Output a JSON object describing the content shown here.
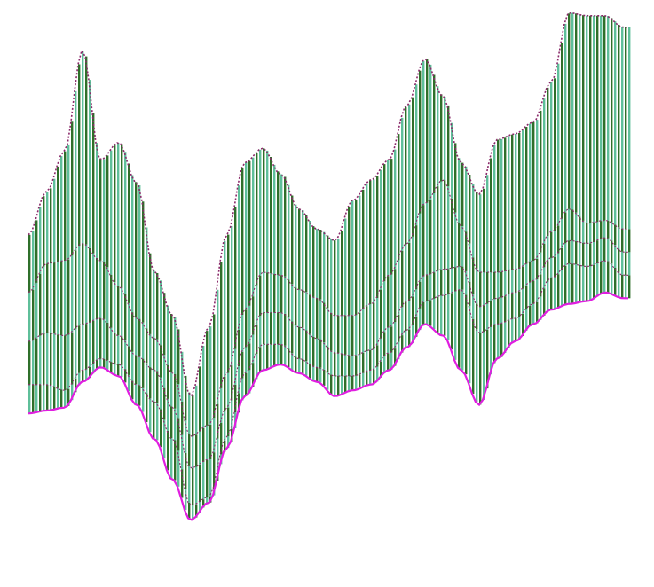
{
  "chart_data": {
    "type": "area",
    "style": "stacked streamgraph drawn with thin vertical bars",
    "title": "",
    "xlabel": "",
    "ylabel": "",
    "axes_visible": false,
    "grid": false,
    "legend": "none",
    "x_range": [
      0,
      100
    ],
    "y_range": [
      -100,
      100
    ],
    "colors": {
      "background": "#ffffff",
      "fill_light": "#5fbf9a",
      "fill_dark": "#2f6f2a",
      "baseline_line": "#e01ee0",
      "edge": "#8a2a6a"
    },
    "x": [
      0,
      3,
      6,
      9,
      12,
      15,
      18,
      21,
      24,
      27,
      30,
      33,
      36,
      39,
      42,
      45,
      48,
      51,
      54,
      57,
      60,
      63,
      66,
      69,
      72,
      75,
      78,
      81,
      84,
      87,
      90,
      93,
      96,
      99
    ],
    "baseline": [
      -41,
      -40,
      -39,
      -30,
      -25,
      -28,
      -38,
      -50,
      -64,
      -78,
      -72,
      -53,
      -35,
      -26,
      -24,
      -27,
      -30,
      -35,
      -33,
      -31,
      -26,
      -18,
      -10,
      -14,
      -26,
      -38,
      -22,
      -16,
      -10,
      -5,
      -3,
      -2,
      1,
      -1
    ],
    "series": [
      {
        "values": [
          10,
          9,
          6,
          4,
          3,
          4,
          7,
          13,
          14,
          5,
          2,
          4,
          8,
          9,
          7,
          5,
          5,
          7,
          5,
          5,
          6,
          6,
          8,
          14,
          28,
          25,
          12,
          8,
          7,
          11,
          14,
          12,
          11,
          8
        ]
      },
      {
        "values": [
          15,
          18,
          19,
          16,
          14,
          10,
          10,
          11,
          11,
          13,
          13,
          10,
          9,
          11,
          11,
          11,
          10,
          8,
          7,
          7,
          9,
          10,
          9,
          9,
          8,
          9,
          9,
          9,
          8,
          7,
          8,
          8,
          8,
          8
        ]
      },
      {
        "values": [
          17,
          24,
          26,
          28,
          20,
          17,
          13,
          11,
          12,
          11,
          12,
          12,
          13,
          14,
          13,
          13,
          14,
          13,
          14,
          16,
          18,
          20,
          25,
          31,
          14,
          12,
          9,
          8,
          7,
          9,
          11,
          7,
          6,
          8
        ]
      },
      {
        "values": [
          20,
          25,
          38,
          67,
          35,
          50,
          47,
          23,
          20,
          14,
          34,
          48,
          51,
          43,
          35,
          28,
          24,
          26,
          40,
          43,
          40,
          48,
          50,
          29,
          22,
          27,
          46,
          47,
          48,
          52,
          68,
          72,
          71,
          70
        ]
      }
    ]
  }
}
